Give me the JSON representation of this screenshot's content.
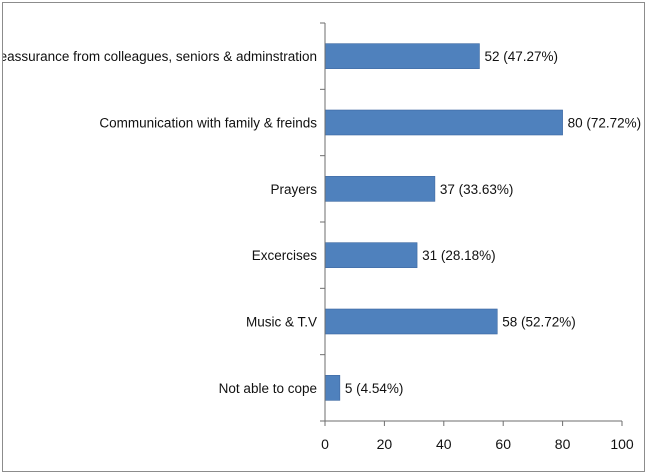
{
  "chart_data": {
    "type": "bar",
    "orientation": "horizontal",
    "categories": [
      "Reassurance from colleagues, seniors & adminstration",
      "Communication with family & freinds",
      "Prayers",
      "Excercises",
      "Music & T.V",
      "Not able to cope"
    ],
    "values": [
      52,
      80,
      37,
      31,
      58,
      5
    ],
    "data_labels": [
      "52 (47.27%)",
      "80 (72.72%)",
      "37 (33.63%)",
      "31 (28.18%)",
      "58 (52.72%)",
      "5 (4.54%)"
    ],
    "xlim": [
      0,
      100
    ],
    "xticks": [
      "0",
      "20",
      "40",
      "60",
      "80",
      "100"
    ],
    "grid": false,
    "legend": "none",
    "bar_color": "#4f81bd",
    "bar_border_color": "#3a66a0"
  }
}
